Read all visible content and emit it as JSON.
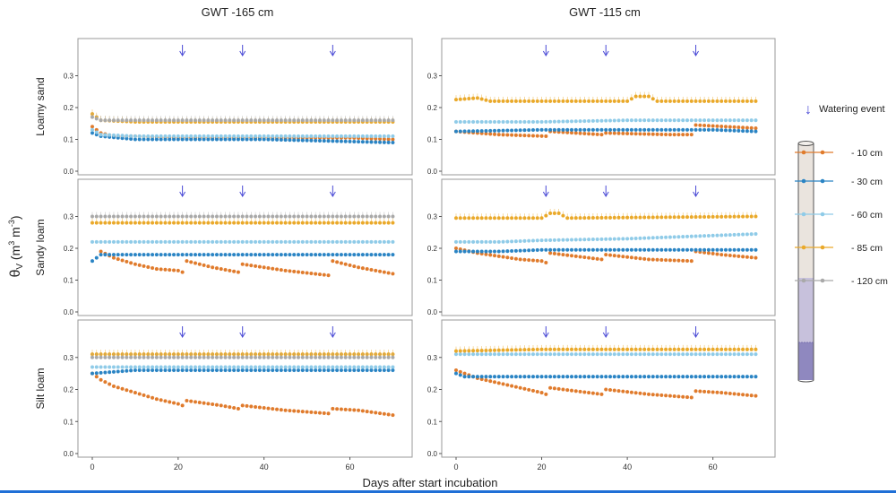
{
  "figure": {
    "column_titles": [
      "GWT -165 cm",
      "GWT -115 cm"
    ],
    "row_titles": [
      "Loamy sand",
      "Sandy loam",
      "Silt loam"
    ],
    "y_label_main": "θ",
    "y_label_sub": "V",
    "y_label_rest": " (m",
    "y_label_sup": "3",
    "y_label_mid": " m",
    "y_label_sup2": "-3",
    "y_label_end": ")",
    "x_label": "Days after start incubation",
    "watering_label": "Watering event"
  },
  "colors": {
    "d10": "#e07b2c",
    "d30": "#2a84c4",
    "d60": "#8fcbe8",
    "d85": "#eaa92a",
    "d120": "#a9a9a9",
    "arrow": "#4a4ad6",
    "frame": "#9a9a9a",
    "column_top": "#eae4de",
    "column_mid": "#c7c1dc",
    "column_bottom": "#8f88bf"
  },
  "chart_data": {
    "type": "scatter",
    "xlim": [
      0,
      72
    ],
    "ylim": [
      0,
      0.4
    ],
    "x_ticks": [
      0,
      20,
      40,
      60
    ],
    "y_ticks": [
      "0.0",
      "0.1",
      "0.2",
      "0.3"
    ],
    "y_tick_values": [
      0,
      0.1,
      0.2,
      0.3
    ],
    "watering_days": [
      21,
      35,
      56
    ],
    "series_legend": [
      {
        "key": "d10",
        "label": "- 10 cm"
      },
      {
        "key": "d30",
        "label": "- 30 cm"
      },
      {
        "key": "d60",
        "label": "- 60 cm"
      },
      {
        "key": "d85",
        "label": "- 85 cm"
      },
      {
        "key": "d120",
        "label": "- 120 cm"
      }
    ],
    "panels": [
      {
        "row": 0,
        "col": 0,
        "series": [
          {
            "key": "d10",
            "points": [
              [
                0,
                0.14
              ],
              [
                2,
                0.12
              ],
              [
                5,
                0.11
              ],
              [
                10,
                0.11
              ],
              [
                20,
                0.105
              ],
              [
                40,
                0.105
              ],
              [
                60,
                0.105
              ],
              [
                70,
                0.1
              ]
            ]
          },
          {
            "key": "d30",
            "points": [
              [
                0,
                0.12
              ],
              [
                2,
                0.11
              ],
              [
                10,
                0.1
              ],
              [
                40,
                0.1
              ],
              [
                70,
                0.09
              ]
            ]
          },
          {
            "key": "d60",
            "points": [
              [
                0,
                0.13
              ],
              [
                2,
                0.115
              ],
              [
                10,
                0.11
              ],
              [
                40,
                0.11
              ],
              [
                70,
                0.11
              ]
            ]
          },
          {
            "key": "d85",
            "points": [
              [
                0,
                0.18
              ],
              [
                2,
                0.16
              ],
              [
                10,
                0.155
              ],
              [
                40,
                0.155
              ],
              [
                70,
                0.155
              ]
            ]
          },
          {
            "key": "d120",
            "points": [
              [
                0,
                0.17
              ],
              [
                2,
                0.16
              ],
              [
                10,
                0.16
              ],
              [
                40,
                0.16
              ],
              [
                70,
                0.16
              ]
            ]
          }
        ]
      },
      {
        "row": 0,
        "col": 1,
        "series": [
          {
            "key": "d10",
            "points": [
              [
                0,
                0.125
              ],
              [
                5,
                0.12
              ],
              [
                10,
                0.115
              ],
              [
                21,
                0.11
              ],
              [
                22,
                0.125
              ],
              [
                34,
                0.115
              ],
              [
                35,
                0.12
              ],
              [
                50,
                0.115
              ],
              [
                55,
                0.115
              ],
              [
                56,
                0.145
              ],
              [
                70,
                0.135
              ]
            ]
          },
          {
            "key": "d30",
            "points": [
              [
                0,
                0.125
              ],
              [
                20,
                0.13
              ],
              [
                40,
                0.13
              ],
              [
                60,
                0.13
              ],
              [
                70,
                0.125
              ]
            ]
          },
          {
            "key": "d60",
            "points": [
              [
                0,
                0.155
              ],
              [
                20,
                0.155
              ],
              [
                40,
                0.16
              ],
              [
                60,
                0.16
              ],
              [
                70,
                0.16
              ]
            ]
          },
          {
            "key": "d85",
            "points": [
              [
                0,
                0.225
              ],
              [
                5,
                0.23
              ],
              [
                8,
                0.22
              ],
              [
                40,
                0.22
              ],
              [
                42,
                0.235
              ],
              [
                45,
                0.235
              ],
              [
                47,
                0.22
              ],
              [
                70,
                0.22
              ]
            ]
          }
        ]
      },
      {
        "row": 1,
        "col": 0,
        "series": [
          {
            "key": "d10",
            "points": [
              [
                2,
                0.19
              ],
              [
                5,
                0.17
              ],
              [
                10,
                0.15
              ],
              [
                15,
                0.135
              ],
              [
                20,
                0.13
              ],
              [
                21,
                0.125
              ],
              [
                22,
                0.16
              ],
              [
                28,
                0.14
              ],
              [
                34,
                0.125
              ],
              [
                35,
                0.15
              ],
              [
                45,
                0.13
              ],
              [
                55,
                0.115
              ],
              [
                56,
                0.16
              ],
              [
                62,
                0.14
              ],
              [
                70,
                0.12
              ]
            ]
          },
          {
            "key": "d30",
            "points": [
              [
                0,
                0.16
              ],
              [
                2,
                0.18
              ],
              [
                10,
                0.18
              ],
              [
                40,
                0.18
              ],
              [
                70,
                0.18
              ]
            ]
          },
          {
            "key": "d60",
            "points": [
              [
                0,
                0.22
              ],
              [
                10,
                0.22
              ],
              [
                40,
                0.22
              ],
              [
                70,
                0.22
              ]
            ]
          },
          {
            "key": "d85",
            "points": [
              [
                0,
                0.28
              ],
              [
                40,
                0.28
              ],
              [
                70,
                0.28
              ]
            ]
          },
          {
            "key": "d120",
            "points": [
              [
                0,
                0.3
              ],
              [
                40,
                0.3
              ],
              [
                70,
                0.3
              ]
            ]
          }
        ]
      },
      {
        "row": 1,
        "col": 1,
        "series": [
          {
            "key": "d10",
            "points": [
              [
                0,
                0.2
              ],
              [
                5,
                0.185
              ],
              [
                10,
                0.175
              ],
              [
                15,
                0.165
              ],
              [
                20,
                0.16
              ],
              [
                21,
                0.155
              ],
              [
                22,
                0.185
              ],
              [
                28,
                0.175
              ],
              [
                34,
                0.165
              ],
              [
                35,
                0.18
              ],
              [
                45,
                0.165
              ],
              [
                55,
                0.16
              ],
              [
                56,
                0.19
              ],
              [
                62,
                0.18
              ],
              [
                70,
                0.17
              ]
            ]
          },
          {
            "key": "d30",
            "points": [
              [
                0,
                0.19
              ],
              [
                10,
                0.19
              ],
              [
                20,
                0.195
              ],
              [
                40,
                0.195
              ],
              [
                60,
                0.195
              ],
              [
                70,
                0.195
              ]
            ]
          },
          {
            "key": "d60",
            "points": [
              [
                0,
                0.22
              ],
              [
                10,
                0.22
              ],
              [
                20,
                0.225
              ],
              [
                40,
                0.23
              ],
              [
                60,
                0.24
              ],
              [
                70,
                0.245
              ]
            ]
          },
          {
            "key": "d85",
            "points": [
              [
                0,
                0.295
              ],
              [
                20,
                0.295
              ],
              [
                22,
                0.31
              ],
              [
                24,
                0.31
              ],
              [
                26,
                0.295
              ],
              [
                70,
                0.3
              ]
            ]
          }
        ]
      },
      {
        "row": 2,
        "col": 0,
        "series": [
          {
            "key": "d10",
            "points": [
              [
                0,
                0.25
              ],
              [
                2,
                0.23
              ],
              [
                5,
                0.21
              ],
              [
                10,
                0.19
              ],
              [
                15,
                0.17
              ],
              [
                20,
                0.155
              ],
              [
                21,
                0.15
              ],
              [
                22,
                0.165
              ],
              [
                30,
                0.15
              ],
              [
                34,
                0.14
              ],
              [
                35,
                0.15
              ],
              [
                45,
                0.135
              ],
              [
                55,
                0.125
              ],
              [
                56,
                0.14
              ],
              [
                62,
                0.135
              ],
              [
                70,
                0.12
              ]
            ]
          },
          {
            "key": "d30",
            "points": [
              [
                0,
                0.25
              ],
              [
                10,
                0.26
              ],
              [
                40,
                0.26
              ],
              [
                70,
                0.26
              ]
            ]
          },
          {
            "key": "d60",
            "points": [
              [
                0,
                0.27
              ],
              [
                10,
                0.27
              ],
              [
                40,
                0.27
              ],
              [
                70,
                0.27
              ]
            ]
          },
          {
            "key": "d85",
            "points": [
              [
                0,
                0.31
              ],
              [
                40,
                0.31
              ],
              [
                70,
                0.31
              ]
            ]
          },
          {
            "key": "d120",
            "points": [
              [
                0,
                0.3
              ],
              [
                40,
                0.3
              ],
              [
                70,
                0.3
              ]
            ]
          }
        ]
      },
      {
        "row": 2,
        "col": 1,
        "series": [
          {
            "key": "d10",
            "points": [
              [
                0,
                0.26
              ],
              [
                5,
                0.235
              ],
              [
                10,
                0.22
              ],
              [
                15,
                0.205
              ],
              [
                20,
                0.19
              ],
              [
                21,
                0.185
              ],
              [
                22,
                0.205
              ],
              [
                28,
                0.195
              ],
              [
                34,
                0.185
              ],
              [
                35,
                0.2
              ],
              [
                45,
                0.185
              ],
              [
                55,
                0.175
              ],
              [
                56,
                0.195
              ],
              [
                62,
                0.19
              ],
              [
                70,
                0.18
              ]
            ]
          },
          {
            "key": "d30",
            "points": [
              [
                0,
                0.25
              ],
              [
                2,
                0.24
              ],
              [
                20,
                0.24
              ],
              [
                40,
                0.24
              ],
              [
                60,
                0.24
              ],
              [
                70,
                0.24
              ]
            ]
          },
          {
            "key": "d60",
            "points": [
              [
                0,
                0.31
              ],
              [
                20,
                0.31
              ],
              [
                40,
                0.31
              ],
              [
                60,
                0.31
              ],
              [
                70,
                0.31
              ]
            ]
          },
          {
            "key": "d85",
            "points": [
              [
                0,
                0.32
              ],
              [
                20,
                0.325
              ],
              [
                40,
                0.325
              ],
              [
                70,
                0.325
              ]
            ]
          }
        ]
      }
    ]
  }
}
